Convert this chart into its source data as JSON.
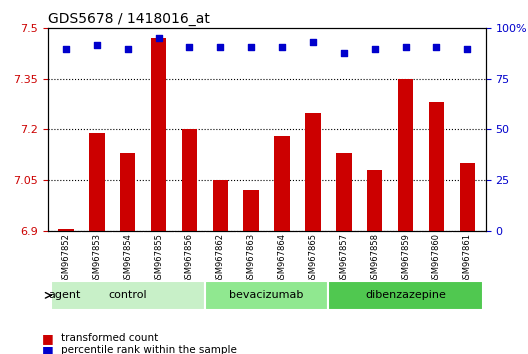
{
  "title": "GDS5678 / 1418016_at",
  "samples": [
    "GSM967852",
    "GSM967853",
    "GSM967854",
    "GSM967855",
    "GSM967856",
    "GSM967862",
    "GSM967863",
    "GSM967864",
    "GSM967865",
    "GSM967857",
    "GSM967858",
    "GSM967859",
    "GSM967860",
    "GSM967861"
  ],
  "bar_values": [
    6.905,
    7.19,
    7.13,
    7.47,
    7.2,
    7.05,
    7.02,
    7.18,
    7.25,
    7.13,
    7.08,
    7.35,
    7.28,
    7.1
  ],
  "dot_values": [
    90,
    92,
    90,
    95,
    91,
    91,
    91,
    91,
    93,
    88,
    90,
    91,
    91,
    90
  ],
  "ylim_left": [
    6.9,
    7.5
  ],
  "ylim_right": [
    0,
    100
  ],
  "yticks_left": [
    6.9,
    7.05,
    7.2,
    7.35,
    7.5
  ],
  "yticks_right": [
    0,
    25,
    50,
    75,
    100
  ],
  "groups": [
    {
      "label": "control",
      "start": 0,
      "end": 5,
      "color": "#c8f0c8"
    },
    {
      "label": "bevacizumab",
      "start": 5,
      "end": 9,
      "color": "#90e890"
    },
    {
      "label": "dibenzazepine",
      "start": 9,
      "end": 14,
      "color": "#50c850"
    }
  ],
  "bar_color": "#cc0000",
  "dot_color": "#0000cc",
  "bar_bottom": 6.9,
  "agent_label": "agent",
  "legend_bar_label": "transformed count",
  "legend_dot_label": "percentile rank within the sample",
  "background_color": "#ffffff",
  "plot_bg_color": "#ffffff",
  "tick_area_color": "#d8d8d8",
  "grid_color": "#000000",
  "left_tick_color": "#cc0000",
  "right_tick_color": "#0000cc"
}
